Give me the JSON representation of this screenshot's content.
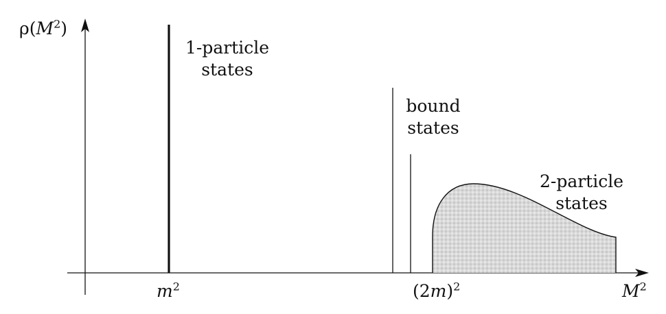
{
  "axes": {
    "y_label": {
      "prefix": "ρ(",
      "var": "M",
      "exp": "2",
      "suffix": ")"
    },
    "x_label": {
      "var": "M",
      "exp": "2"
    }
  },
  "ticks": {
    "m2": {
      "var": "m",
      "exp": "2"
    },
    "threshold": {
      "prefix": "(2",
      "var": "m",
      "suffix": ")",
      "exp": "2"
    }
  },
  "annotations": {
    "one_particle": [
      "1-particle",
      "states"
    ],
    "bound": [
      "bound",
      "states"
    ],
    "two_particle": [
      "2-particle",
      "states"
    ]
  },
  "colors": {
    "ink": "#111111",
    "shade": "#d6d6d6"
  }
}
